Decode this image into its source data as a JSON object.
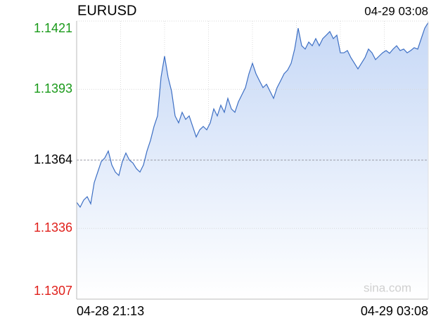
{
  "chart_data": {
    "type": "area_line",
    "title": "EURUSD",
    "timestamp": "04-29 03:08",
    "watermark": "sina.com",
    "categories": [
      "04-28 21:13",
      null,
      null,
      null,
      null,
      null,
      null,
      null,
      null,
      null,
      null,
      null,
      null,
      null,
      null,
      null,
      null,
      null,
      null,
      null,
      null,
      null,
      null,
      null,
      null,
      null,
      null,
      null,
      null,
      null,
      null,
      null,
      null,
      null,
      null,
      null,
      null,
      null,
      null,
      null,
      null,
      null,
      null,
      null,
      null,
      null,
      null,
      null,
      null,
      null,
      null,
      null,
      null,
      null,
      null,
      null,
      null,
      null,
      null,
      null,
      null,
      null,
      null,
      null,
      null,
      null,
      null,
      null,
      null,
      null,
      null,
      null,
      null,
      null,
      null,
      null,
      null,
      null,
      null,
      null,
      null,
      null,
      null,
      null,
      null,
      null,
      null,
      null,
      null,
      null,
      null,
      null,
      null,
      null,
      null,
      null,
      null,
      null,
      null,
      null,
      "04-29 03:08"
    ],
    "values": [
      1.13467,
      1.13447,
      1.13476,
      1.1349,
      1.13461,
      1.13548,
      1.13591,
      1.13634,
      1.13649,
      1.13677,
      1.1362,
      1.13591,
      1.13577,
      1.13634,
      1.13669,
      1.1364,
      1.13628,
      1.13605,
      1.13591,
      1.1362,
      1.13677,
      1.13721,
      1.13778,
      1.13821,
      1.1398,
      1.14066,
      1.1398,
      1.13922,
      1.13821,
      1.13793,
      1.13836,
      1.13807,
      1.13821,
      1.13778,
      1.13735,
      1.13764,
      1.13778,
      1.13764,
      1.13793,
      1.1385,
      1.13821,
      1.13865,
      1.13836,
      1.13893,
      1.1385,
      1.13836,
      1.13879,
      1.13908,
      1.13937,
      1.13994,
      1.14037,
      1.13994,
      1.13965,
      1.13937,
      1.13951,
      1.13922,
      1.13893,
      1.13937,
      1.13965,
      1.13994,
      1.14009,
      1.14037,
      1.14095,
      1.14181,
      1.14109,
      1.14095,
      1.14124,
      1.14109,
      1.14138,
      1.14109,
      1.14138,
      1.14152,
      1.14167,
      1.14138,
      1.14152,
      1.1408,
      1.1408,
      1.14089,
      1.1406,
      1.14037,
      1.14014,
      1.14037,
      1.1406,
      1.14095,
      1.1408,
      1.14052,
      1.14066,
      1.1408,
      1.14089,
      1.14078,
      1.14095,
      1.14109,
      1.14089,
      1.14095,
      1.1408,
      1.14089,
      1.14101,
      1.14095,
      1.14138,
      1.14181,
      1.14204
    ],
    "color": "#3d6fc4",
    "fill_color": "#c6d8f6",
    "ylim": [
      1.1307,
      1.1421
    ],
    "yticks": [
      1.1307,
      1.1336,
      1.1364,
      1.1393,
      1.1421
    ],
    "reference_line": 1.1364,
    "up_color": "#1a9a1a",
    "down_color": "#e0201b",
    "flat_color": "#000000",
    "grid": true
  }
}
